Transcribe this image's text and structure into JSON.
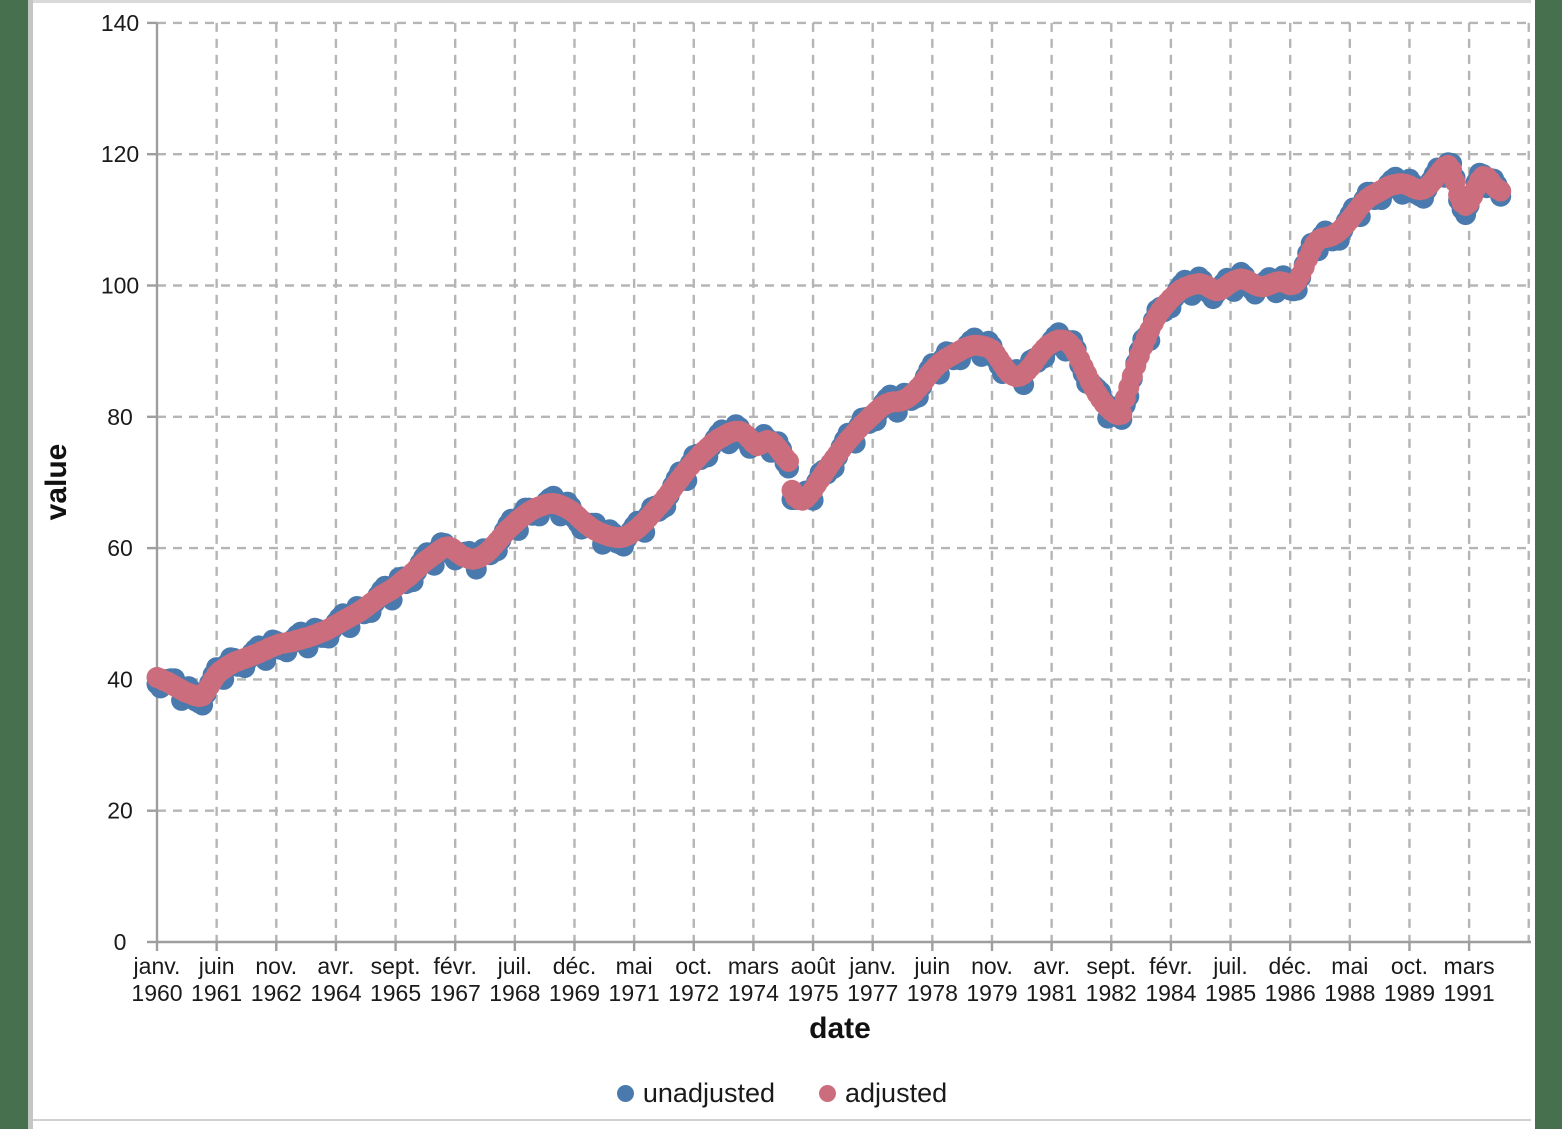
{
  "window": {
    "side_bar_color": "#47704e",
    "divider_color": "#c3c7c3",
    "plot_background": "#ffffff",
    "gridline_color": "#b5b5b5",
    "axis_color": "#9e9e9e"
  },
  "axis_titles": {
    "x": "date",
    "y": "value"
  },
  "chart_data": {
    "type": "scatter",
    "xlabel": "date",
    "ylabel": "value",
    "grid": "dashed",
    "legend_position": "bottom",
    "ylim": [
      0,
      140
    ],
    "y_ticks": [
      0,
      20,
      40,
      60,
      80,
      100,
      120,
      140
    ],
    "x_start_month": "janv. 1960",
    "x_end_month": "déc. 1991",
    "tick_interval_months": 17,
    "x_tick_labels": [
      {
        "month": "janv.",
        "year": "1960"
      },
      {
        "month": "juin",
        "year": "1961"
      },
      {
        "month": "nov.",
        "year": "1962"
      },
      {
        "month": "avr.",
        "year": "1964"
      },
      {
        "month": "sept.",
        "year": "1965"
      },
      {
        "month": "févr.",
        "year": "1967"
      },
      {
        "month": "juil.",
        "year": "1968"
      },
      {
        "month": "déc.",
        "year": "1969"
      },
      {
        "month": "mai",
        "year": "1971"
      },
      {
        "month": "oct.",
        "year": "1972"
      },
      {
        "month": "mars",
        "year": "1974"
      },
      {
        "month": "août",
        "year": "1975"
      },
      {
        "month": "janv.",
        "year": "1977"
      },
      {
        "month": "juin",
        "year": "1978"
      },
      {
        "month": "nov.",
        "year": "1979"
      },
      {
        "month": "avr.",
        "year": "1981"
      },
      {
        "month": "sept.",
        "year": "1982"
      },
      {
        "month": "févr.",
        "year": "1984"
      },
      {
        "month": "juil.",
        "year": "1985"
      },
      {
        "month": "déc.",
        "year": "1986"
      },
      {
        "month": "mai",
        "year": "1988"
      },
      {
        "month": "oct.",
        "year": "1989"
      },
      {
        "month": "mars",
        "year": "1991"
      }
    ],
    "series": [
      {
        "name": "unadjusted",
        "color": "#4a7aad",
        "values": [
          39.3,
          38.7,
          39.4,
          40.0,
          40.1,
          40.1,
          39.0,
          36.8,
          38.5,
          38.9,
          38.3,
          36.7,
          36.4,
          36.1,
          37.8,
          39.4,
          40.7,
          41.8,
          41.5,
          40.0,
          42.4,
          43.3,
          43.2,
          42.0,
          42.0,
          41.8,
          43.0,
          44.0,
          44.6,
          45.1,
          44.6,
          42.9,
          45.2,
          46.0,
          45.8,
          44.6,
          44.5,
          44.2,
          45.3,
          46.2,
          46.8,
          47.2,
          46.6,
          44.8,
          47.0,
          47.8,
          47.6,
          46.4,
          46.4,
          46.3,
          47.6,
          48.7,
          49.4,
          50.0,
          49.5,
          47.9,
          50.2,
          51.1,
          51.0,
          50.0,
          50.2,
          50.2,
          51.6,
          52.8,
          53.6,
          54.2,
          53.7,
          52.1,
          54.5,
          55.5,
          55.6,
          54.6,
          54.8,
          54.9,
          56.4,
          57.7,
          58.6,
          59.3,
          58.9,
          57.4,
          59.8,
          60.8,
          60.7,
          59.4,
          59.0,
          58.2,
          58.8,
          59.2,
          59.4,
          59.5,
          58.6,
          56.8,
          59.0,
          59.9,
          59.9,
          59.0,
          59.4,
          59.6,
          61.2,
          62.6,
          63.6,
          64.4,
          64.1,
          62.7,
          65.1,
          66.1,
          66.1,
          65.0,
          65.1,
          64.9,
          66.1,
          67.1,
          67.6,
          67.9,
          67.0,
          64.9,
          66.7,
          67.0,
          66.3,
          64.5,
          63.8,
          62.9,
          63.4,
          63.8,
          63.8,
          63.8,
          62.7,
          60.6,
          62.4,
          62.8,
          62.3,
          60.8,
          60.6,
          60.3,
          61.5,
          62.6,
          63.4,
          64.1,
          63.8,
          62.4,
          65.0,
          66.2,
          66.4,
          65.6,
          66.0,
          66.3,
          68.0,
          69.5,
          70.6,
          71.6,
          71.5,
          70.3,
          72.9,
          74.1,
          74.3,
          73.5,
          73.8,
          73.9,
          75.4,
          76.6,
          77.4,
          78.0,
          77.5,
          75.9,
          78.1,
          78.8,
          78.4,
          76.8,
          76.2,
          75.2,
          75.6,
          76.0,
          76.6,
          77.3,
          76.7,
          74.6,
          76.2,
          76.2,
          75.1,
          73.0,
          72.2,
          67.4,
          67.4,
          67.8,
          68.1,
          68.7,
          68.5,
          67.3,
          70.1,
          71.5,
          71.9,
          71.3,
          71.9,
          72.2,
          73.9,
          75.4,
          76.5,
          77.5,
          77.3,
          76.0,
          78.6,
          79.8,
          79.9,
          79.0,
          79.3,
          79.4,
          80.9,
          82.1,
          82.8,
          83.3,
          82.6,
          80.7,
          82.8,
          83.6,
          83.5,
          82.5,
          82.8,
          83.0,
          84.6,
          86.1,
          87.2,
          88.1,
          87.9,
          86.5,
          88.9,
          89.9,
          89.8,
          88.7,
          88.8,
          88.7,
          90.0,
          91.0,
          91.6,
          92.0,
          91.2,
          89.2,
          91.1,
          91.5,
          90.8,
          88.8,
          87.8,
          86.6,
          86.8,
          87.0,
          87.1,
          87.2,
          86.5,
          84.9,
          87.4,
          88.6,
          88.9,
          88.3,
          88.8,
          89.0,
          90.5,
          91.6,
          92.3,
          92.8,
          92.0,
          90.0,
          91.6,
          91.6,
          90.3,
          87.9,
          86.6,
          85.1,
          85.0,
          84.8,
          84.3,
          83.8,
          82.3,
          79.8,
          81.3,
          81.5,
          80.9,
          79.6,
          81.8,
          83.1,
          85.8,
          88.2,
          90.1,
          91.8,
          92.3,
          91.6,
          94.7,
          96.3,
          96.7,
          96.0,
          96.4,
          96.6,
          98.1,
          99.4,
          100.2,
          100.8,
          100.2,
          98.5,
          100.6,
          101.3,
          100.8,
          99.2,
          98.7,
          98.0,
          98.8,
          99.7,
          100.4,
          101.1,
          100.7,
          99.1,
          101.3,
          102.0,
          101.5,
          99.9,
          99.4,
          98.7,
          99.5,
          100.2,
          100.7,
          101.2,
          100.6,
          98.9,
          101.0,
          101.5,
          100.9,
          99.3,
          99.2,
          99.3,
          101.2,
          103.2,
          104.9,
          106.4,
          106.6,
          105.3,
          107.6,
          108.3,
          108.0,
          106.8,
          106.9,
          106.9,
          108.4,
          109.8,
          110.8,
          111.8,
          111.7,
          110.5,
          113.1,
          114.2,
          114.2,
          113.1,
          113.2,
          113.1,
          114.4,
          115.5,
          116.1,
          116.5,
          115.8,
          113.9,
          115.8,
          116.2,
          115.5,
          113.9,
          113.6,
          113.3,
          114.6,
          115.9,
          116.9,
          117.9,
          117.8,
          116.5,
          118.7,
          118.6,
          116.4,
          113.0,
          111.6,
          110.8,
          112.2,
          114.0,
          115.7,
          117.1,
          116.9,
          114.9,
          116.3,
          116.2,
          115.3,
          113.6
        ]
      },
      {
        "name": "adjusted",
        "color": "#cb6d7c",
        "values": [
          40.3,
          40.1,
          39.8,
          39.6,
          39.3,
          39.0,
          38.7,
          38.4,
          38.1,
          37.9,
          37.7,
          37.5,
          37.4,
          37.5,
          38.2,
          39.0,
          39.9,
          40.7,
          41.2,
          41.6,
          42.0,
          42.3,
          42.6,
          42.8,
          43.0,
          43.2,
          43.4,
          43.6,
          43.8,
          44.0,
          44.3,
          44.5,
          44.8,
          45.0,
          45.2,
          45.4,
          45.5,
          45.6,
          45.7,
          45.8,
          46.0,
          46.1,
          46.3,
          46.4,
          46.6,
          46.8,
          47.0,
          47.2,
          47.4,
          47.7,
          48.0,
          48.3,
          48.6,
          48.9,
          49.2,
          49.5,
          49.8,
          50.1,
          50.4,
          50.8,
          51.2,
          51.6,
          52.0,
          52.4,
          52.8,
          53.1,
          53.4,
          53.7,
          54.1,
          54.5,
          55.0,
          55.4,
          55.8,
          56.3,
          56.8,
          57.3,
          57.8,
          58.2,
          58.6,
          59.0,
          59.4,
          59.8,
          60.1,
          60.2,
          60.0,
          59.6,
          59.2,
          58.8,
          58.6,
          58.4,
          58.3,
          58.4,
          58.6,
          58.9,
          59.3,
          59.8,
          60.4,
          61.0,
          61.6,
          62.2,
          62.8,
          63.3,
          63.8,
          64.3,
          64.7,
          65.1,
          65.5,
          65.8,
          66.1,
          66.3,
          66.5,
          66.7,
          66.8,
          66.8,
          66.7,
          66.5,
          66.3,
          66.0,
          65.7,
          65.3,
          64.8,
          64.3,
          63.8,
          63.4,
          63.0,
          62.7,
          62.4,
          62.2,
          62.0,
          61.8,
          61.7,
          61.6,
          61.6,
          61.7,
          61.9,
          62.2,
          62.6,
          63.0,
          63.5,
          64.0,
          64.6,
          65.2,
          65.8,
          66.4,
          67.0,
          67.7,
          68.4,
          69.1,
          69.8,
          70.5,
          71.2,
          71.9,
          72.5,
          73.1,
          73.7,
          74.3,
          74.8,
          75.3,
          75.8,
          76.2,
          76.6,
          76.9,
          77.2,
          77.5,
          77.7,
          77.8,
          77.8,
          77.6,
          77.2,
          76.6,
          76.0,
          75.6,
          75.8,
          76.2,
          76.4,
          76.2,
          75.8,
          75.2,
          74.5,
          73.8,
          73.2,
          68.8,
          67.8,
          67.4,
          67.3,
          67.6,
          68.2,
          68.9,
          69.7,
          70.5,
          71.3,
          72.1,
          72.9,
          73.6,
          74.3,
          75.0,
          75.7,
          76.4,
          77.0,
          77.6,
          78.2,
          78.8,
          79.3,
          79.8,
          80.3,
          80.8,
          81.3,
          81.7,
          82.0,
          82.2,
          82.3,
          82.3,
          82.4,
          82.6,
          82.9,
          83.3,
          83.8,
          84.4,
          85.0,
          85.7,
          86.4,
          87.0,
          87.6,
          88.1,
          88.5,
          88.9,
          89.2,
          89.5,
          89.8,
          90.1,
          90.4,
          90.6,
          90.8,
          90.9,
          90.9,
          90.8,
          90.7,
          90.5,
          90.2,
          89.6,
          88.8,
          88.0,
          87.2,
          86.6,
          86.3,
          86.1,
          86.2,
          86.5,
          87.0,
          87.6,
          88.3,
          89.1,
          89.8,
          90.4,
          90.9,
          91.2,
          91.5,
          91.7,
          91.7,
          91.6,
          91.2,
          90.6,
          89.7,
          88.7,
          87.6,
          86.5,
          85.4,
          84.4,
          83.5,
          82.7,
          82.0,
          81.4,
          80.9,
          80.5,
          80.3,
          80.4,
          82.8,
          84.5,
          86.2,
          87.8,
          89.3,
          90.7,
          92.0,
          93.2,
          94.3,
          95.3,
          96.1,
          96.8,
          97.4,
          98.0,
          98.5,
          99.0,
          99.4,
          99.7,
          99.9,
          100.1,
          100.2,
          100.3,
          100.2,
          100.0,
          99.7,
          99.4,
          99.2,
          99.3,
          99.6,
          100.0,
          100.4,
          100.7,
          100.9,
          101.0,
          100.9,
          100.7,
          100.4,
          100.1,
          99.9,
          99.8,
          99.9,
          100.1,
          100.3,
          100.5,
          100.6,
          100.5,
          100.3,
          100.1,
          100.2,
          100.7,
          101.6,
          102.8,
          104.1,
          105.3,
          106.3,
          106.9,
          107.2,
          107.3,
          107.4,
          107.6,
          107.9,
          108.3,
          108.8,
          109.4,
          110.0,
          110.7,
          111.4,
          112.1,
          112.7,
          113.2,
          113.6,
          113.9,
          114.2,
          114.5,
          114.8,
          115.1,
          115.3,
          115.4,
          115.5,
          115.5,
          115.4,
          115.2,
          114.9,
          114.7,
          114.6,
          114.7,
          115.0,
          115.5,
          116.1,
          116.8,
          117.5,
          118.1,
          118.3,
          117.6,
          115.8,
          113.8,
          112.6,
          112.2,
          112.6,
          113.6,
          114.9,
          116.0,
          116.6,
          116.5,
          115.9,
          115.2,
          114.7,
          114.4
        ]
      }
    ]
  },
  "legend": {
    "items": [
      {
        "label": "unadjusted",
        "color": "#4a7aad"
      },
      {
        "label": "adjusted",
        "color": "#cb6d7c"
      }
    ]
  }
}
